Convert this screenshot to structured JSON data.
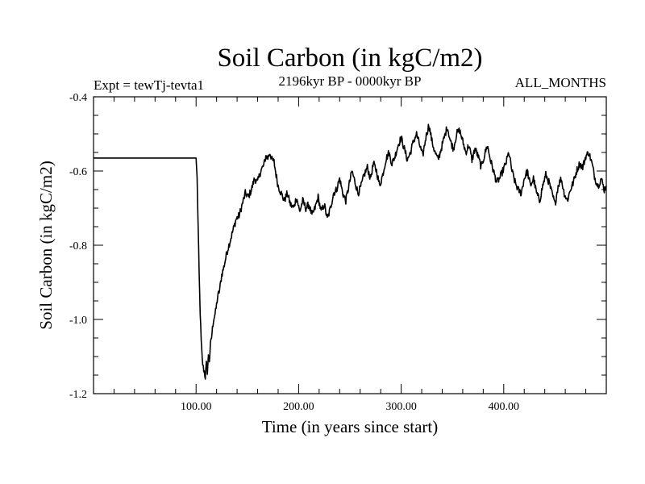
{
  "chart_data": {
    "type": "line",
    "title": "Soil Carbon (in kgC/m2)",
    "subtitle_left": "Expt = tewTj-tevta1",
    "subtitle_center": "2196kyr BP - 0000kyr BP",
    "subtitle_right": "ALL_MONTHS",
    "xlabel": "Time (in years since start)",
    "ylabel": "Soil Carbon (in kgC/m2)",
    "xlim": [
      0,
      500
    ],
    "ylim": [
      -1.2,
      -0.4
    ],
    "x_ticks": [
      {
        "value": 100,
        "label": "100.00"
      },
      {
        "value": 200,
        "label": "200.00"
      },
      {
        "value": 300,
        "label": "300.00"
      },
      {
        "value": 400,
        "label": "400.00"
      }
    ],
    "y_ticks": [
      {
        "value": -0.4,
        "label": "-0.4"
      },
      {
        "value": -0.6,
        "label": "-0.6"
      },
      {
        "value": -0.8,
        "label": "-0.8"
      },
      {
        "value": -1.0,
        "label": "-1.0"
      },
      {
        "value": -1.2,
        "label": "-1.2"
      }
    ],
    "grid": false,
    "series": [
      {
        "name": "Soil Carbon",
        "color": "#000000",
        "x": [
          0,
          20,
          40,
          60,
          80,
          100,
          101,
          102,
          103,
          104,
          105,
          106,
          107,
          108,
          109,
          110,
          111,
          112,
          113,
          114,
          115,
          117,
          119,
          121,
          123,
          125,
          127,
          130,
          133,
          136,
          139,
          142,
          145,
          148,
          151,
          154,
          157,
          160,
          163,
          166,
          168,
          170,
          172,
          174,
          176,
          178,
          180,
          183,
          186,
          189,
          192,
          195,
          198,
          201,
          204,
          207,
          210,
          213,
          216,
          219,
          222,
          225,
          228,
          231,
          234,
          237,
          240,
          243,
          246,
          249,
          252,
          255,
          258,
          261,
          264,
          267,
          270,
          273,
          276,
          279,
          282,
          285,
          288,
          291,
          294,
          297,
          300,
          303,
          306,
          309,
          312,
          315,
          318,
          321,
          324,
          327,
          330,
          333,
          336,
          339,
          342,
          345,
          348,
          351,
          354,
          357,
          360,
          363,
          366,
          369,
          372,
          375,
          378,
          381,
          384,
          387,
          390,
          393,
          396,
          399,
          402,
          405,
          408,
          411,
          414,
          417,
          420,
          423,
          426,
          429,
          432,
          435,
          438,
          441,
          444,
          447,
          450,
          453,
          456,
          459,
          462,
          465,
          468,
          471,
          474,
          477,
          480,
          483,
          486,
          489,
          492,
          495,
          498,
          500
        ],
        "values": [
          -0.565,
          -0.565,
          -0.565,
          -0.565,
          -0.565,
          -0.565,
          -0.62,
          -0.75,
          -0.88,
          -0.98,
          -1.06,
          -1.11,
          -1.13,
          -1.14,
          -1.155,
          -1.12,
          -1.14,
          -1.1,
          -1.11,
          -1.07,
          -1.05,
          -1.0,
          -0.98,
          -0.94,
          -0.92,
          -0.88,
          -0.86,
          -0.82,
          -0.79,
          -0.76,
          -0.73,
          -0.72,
          -0.69,
          -0.66,
          -0.67,
          -0.65,
          -0.62,
          -0.63,
          -0.6,
          -0.585,
          -0.56,
          -0.565,
          -0.55,
          -0.57,
          -0.575,
          -0.61,
          -0.64,
          -0.66,
          -0.68,
          -0.66,
          -0.69,
          -0.7,
          -0.67,
          -0.71,
          -0.68,
          -0.7,
          -0.69,
          -0.72,
          -0.7,
          -0.67,
          -0.71,
          -0.69,
          -0.73,
          -0.7,
          -0.66,
          -0.65,
          -0.62,
          -0.66,
          -0.68,
          -0.64,
          -0.6,
          -0.63,
          -0.66,
          -0.64,
          -0.61,
          -0.59,
          -0.62,
          -0.58,
          -0.6,
          -0.64,
          -0.61,
          -0.57,
          -0.55,
          -0.58,
          -0.56,
          -0.53,
          -0.51,
          -0.54,
          -0.57,
          -0.55,
          -0.52,
          -0.5,
          -0.53,
          -0.56,
          -0.51,
          -0.475,
          -0.52,
          -0.55,
          -0.57,
          -0.54,
          -0.51,
          -0.48,
          -0.52,
          -0.54,
          -0.5,
          -0.49,
          -0.52,
          -0.55,
          -0.53,
          -0.57,
          -0.54,
          -0.56,
          -0.59,
          -0.56,
          -0.53,
          -0.57,
          -0.6,
          -0.63,
          -0.62,
          -0.6,
          -0.58,
          -0.55,
          -0.6,
          -0.63,
          -0.65,
          -0.66,
          -0.62,
          -0.6,
          -0.64,
          -0.62,
          -0.66,
          -0.68,
          -0.64,
          -0.61,
          -0.63,
          -0.66,
          -0.69,
          -0.64,
          -0.62,
          -0.66,
          -0.68,
          -0.65,
          -0.63,
          -0.6,
          -0.58,
          -0.59,
          -0.56,
          -0.55,
          -0.58,
          -0.62,
          -0.64,
          -0.62,
          -0.65,
          -0.64
        ]
      }
    ]
  }
}
